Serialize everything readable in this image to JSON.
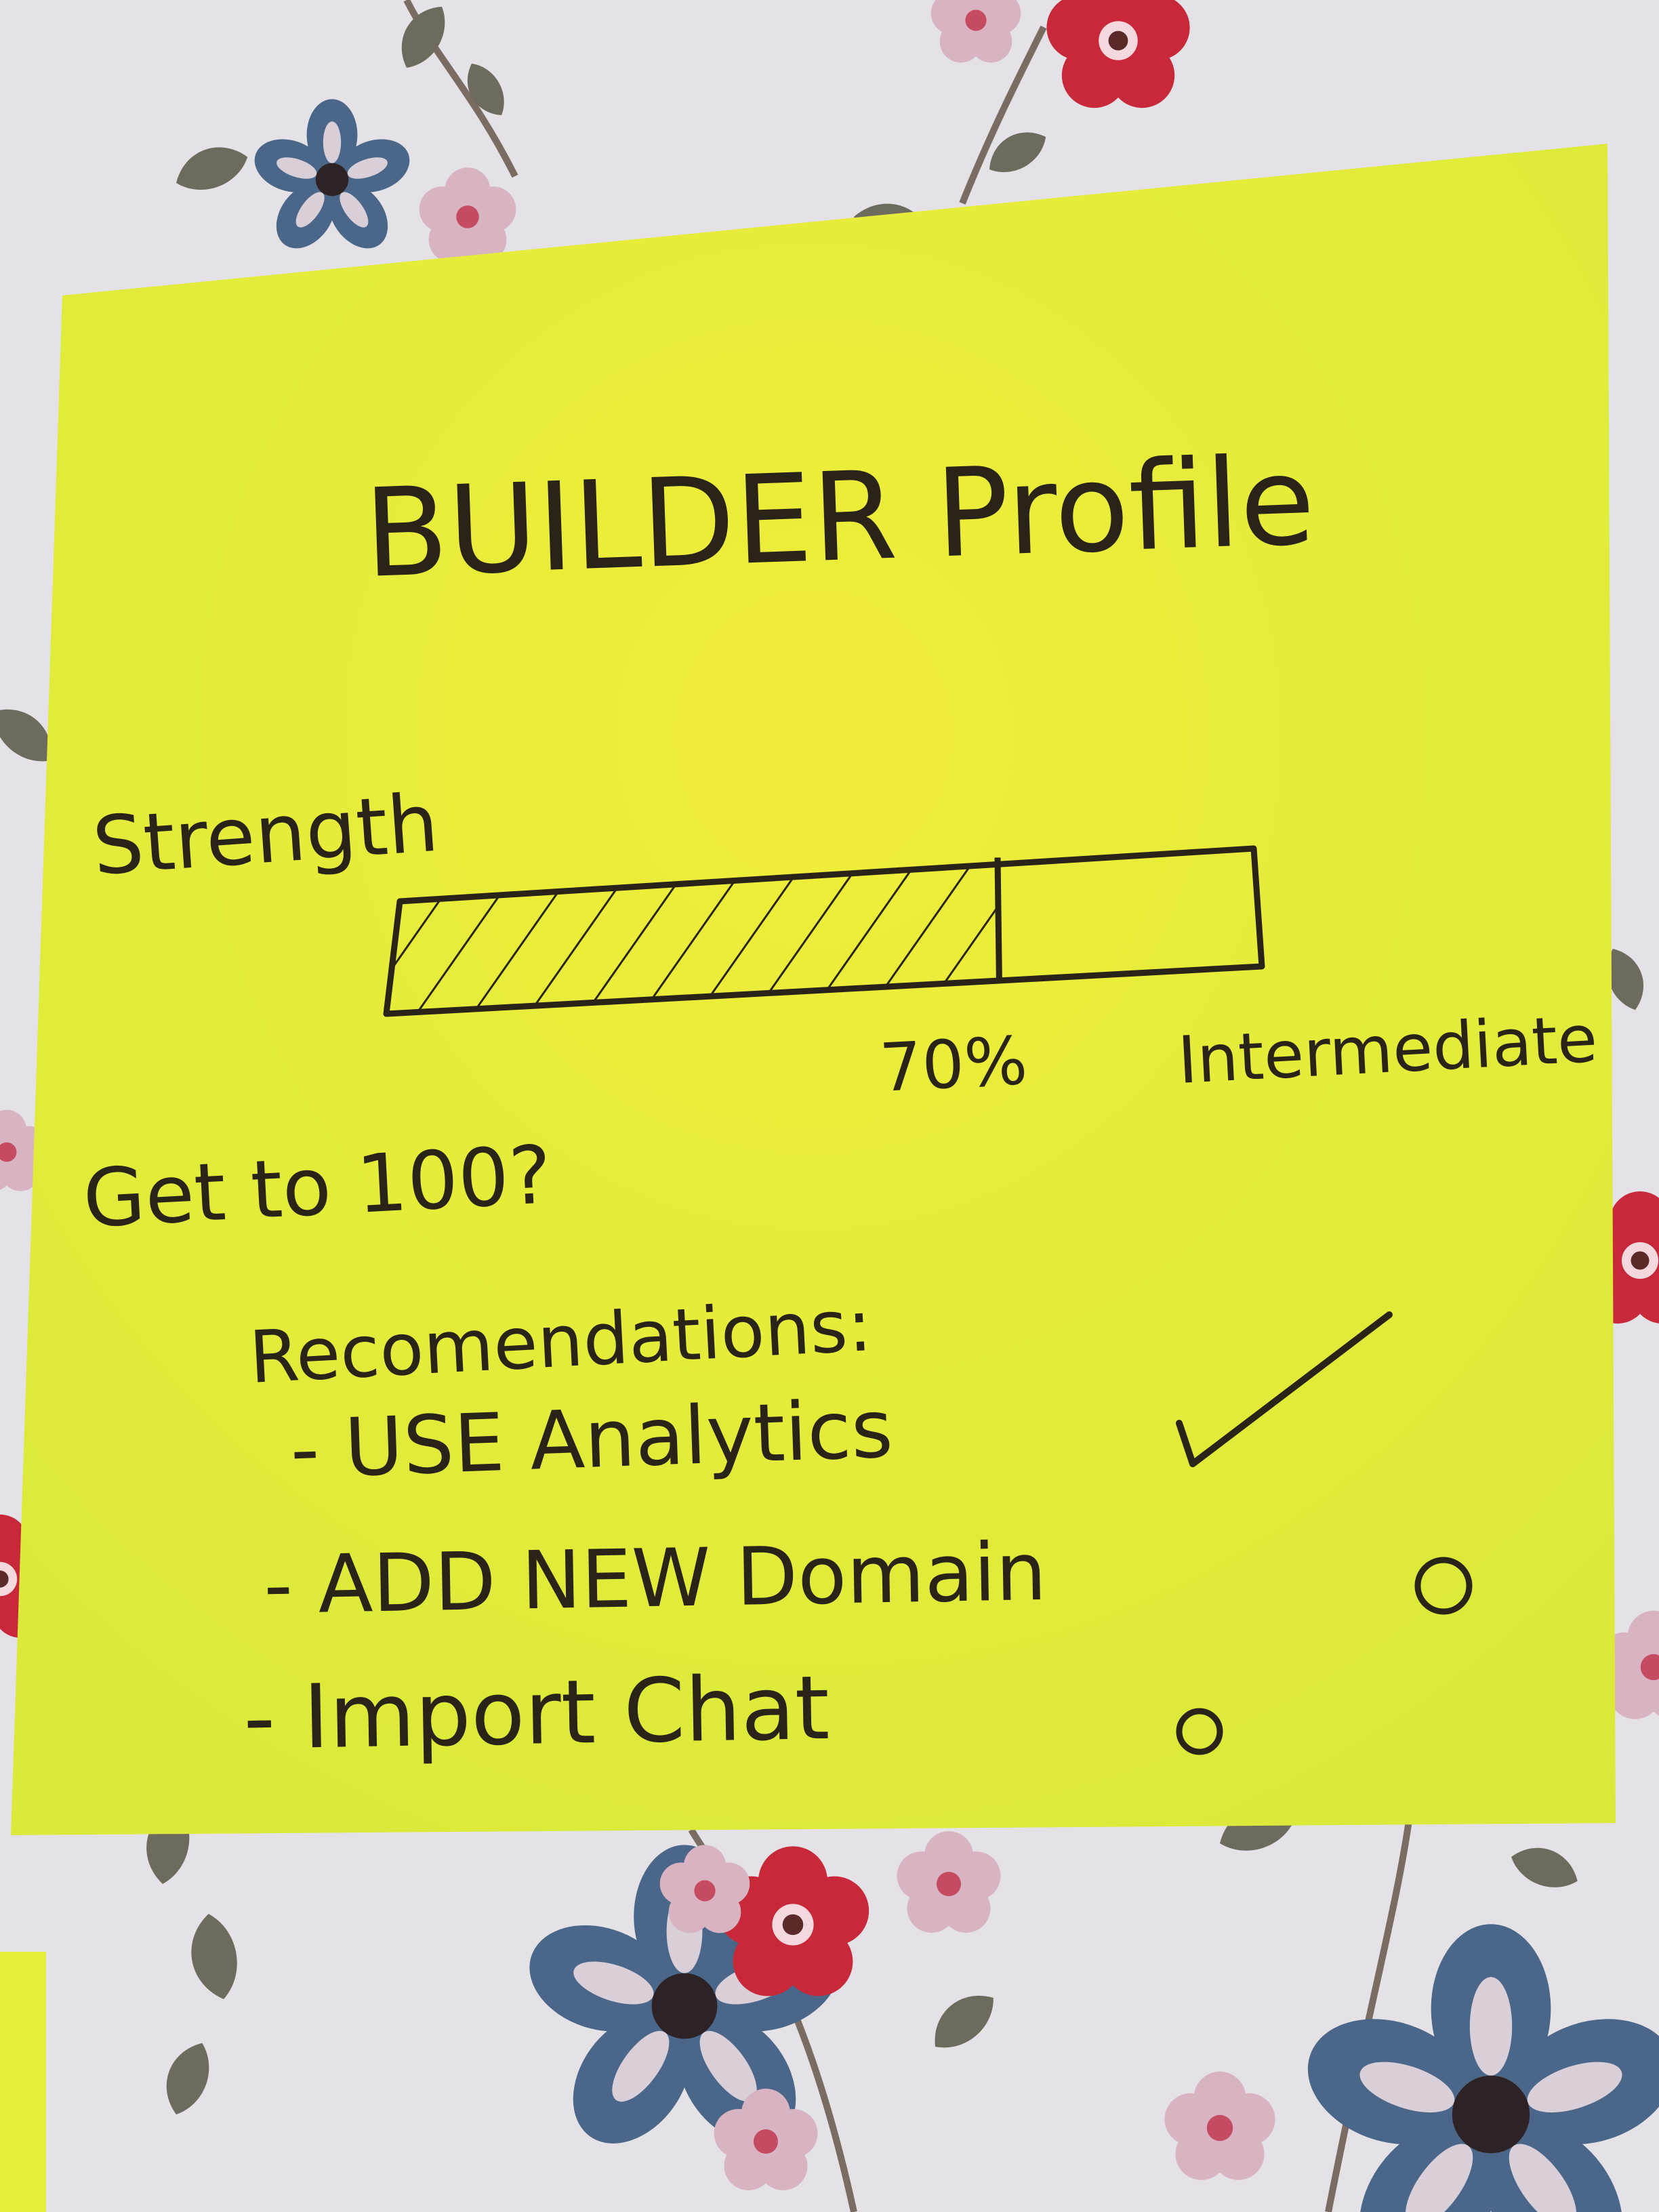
{
  "note": {
    "title": "BUILDER Profile",
    "strength_label": "Strength",
    "progress_value": 0.7,
    "progress_text": "70%",
    "level_text": "Intermediate",
    "question": "Get to 100?",
    "recommendations_heading": "Recomendations:",
    "items": [
      {
        "text": "- USE Analytics",
        "status": "done",
        "status_icon": "check-icon"
      },
      {
        "text": "- ADD NEW Domain",
        "status": "todo",
        "status_icon": "circle-icon"
      },
      {
        "text": "- Import Chat",
        "status": "todo",
        "status_icon": "circle-icon"
      }
    ],
    "colors": {
      "paper": "#e6ef3a",
      "ink": "#2a2418",
      "wallpaper": "#e4e2e6",
      "flower_red": "#c8293a",
      "flower_blue": "#4a6688",
      "flower_pink": "#d8b4c2",
      "leaf": "#6e6a5e"
    }
  }
}
